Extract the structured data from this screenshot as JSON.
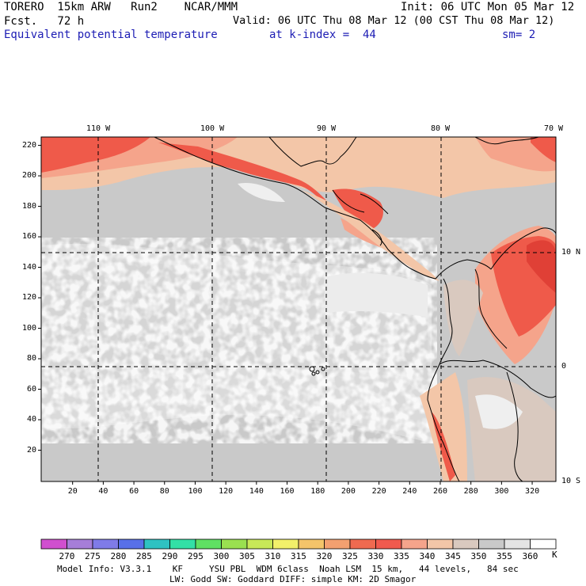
{
  "header": {
    "line1_left": "TORERO  15km ARW   Run2    NCAR/MMM",
    "line1_right": "Init: 06 UTC Mon 05 Mar 12",
    "line2_left": "Fcst.   72 h",
    "line2_right": "Valid: 06 UTC Thu 08 Mar 12 (00 CST Thu 08 Mar 12)",
    "field": "Equivalent potential temperature",
    "level": "at k-index =  44",
    "smoothing": "sm= 2"
  },
  "map": {
    "lon_labels": [
      "110 W",
      "100 W",
      "90 W",
      "80 W",
      "70 W"
    ],
    "lat_labels": [
      "10 N",
      "0",
      "10 S"
    ],
    "x_ticks": [
      "20",
      "40",
      "60",
      "80",
      "100",
      "120",
      "140",
      "160",
      "180",
      "200",
      "220",
      "240",
      "260",
      "280",
      "300",
      "320"
    ],
    "y_ticks": [
      "220",
      "200",
      "180",
      "160",
      "140",
      "120",
      "100",
      "80",
      "60",
      "40",
      "20"
    ]
  },
  "colorbar": {
    "labels": [
      "270",
      "275",
      "280",
      "285",
      "290",
      "295",
      "300",
      "305",
      "310",
      "315",
      "320",
      "325",
      "330",
      "335",
      "340",
      "345",
      "350",
      "355",
      "360"
    ],
    "unit": "K",
    "colors": [
      "#d04fcf",
      "#a67ed8",
      "#7f7be8",
      "#5870e8",
      "#2fc2c2",
      "#33e0a6",
      "#5fe063",
      "#9ae050",
      "#c8e858",
      "#f2f06a",
      "#f4c46a",
      "#f3a070",
      "#ef6a50",
      "#f05a4e",
      "#f5a48b",
      "#f3c6a8",
      "#d9c9bf",
      "#c9c9c9",
      "#e4e4e4",
      "#ffffff"
    ]
  },
  "footer": {
    "line1": "Model Info: V3.3.1    KF     YSU PBL  WDM 6class  Noah LSM  15 km,   44 levels,   84 sec",
    "line2": "LW: Godd SW: Goddard DIFF: simple KM: 2D Smagor"
  }
}
